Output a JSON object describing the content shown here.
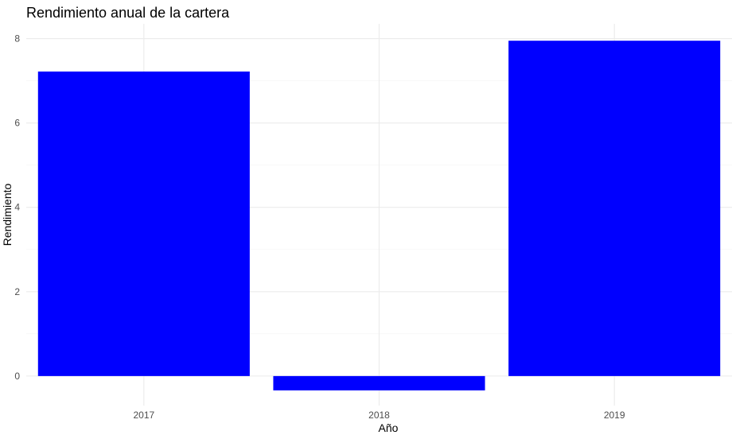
{
  "chart_data": {
    "type": "bar",
    "title": "Rendimiento anual de la cartera",
    "xlabel": "Año",
    "ylabel": "Rendimiento",
    "categories": [
      "2017",
      "2018",
      "2019"
    ],
    "values": [
      7.22,
      -0.34,
      7.95
    ],
    "ylim": [
      -0.7,
      8.35
    ],
    "yticks": [
      "0",
      "2",
      "4",
      "6",
      "8"
    ],
    "bar_color": "#0000ff",
    "grid": true,
    "legend": "none"
  }
}
